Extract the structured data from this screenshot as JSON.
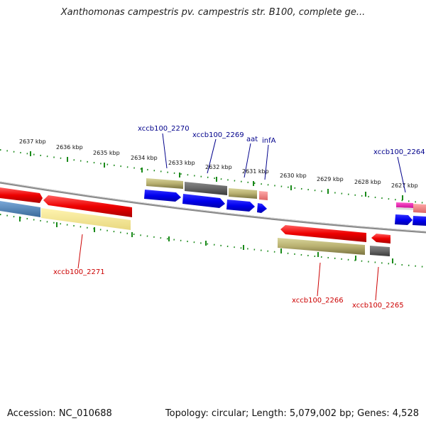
{
  "title": "Xanthomonas campestris pv. campestris str. B100, complete ge...",
  "footer": {
    "accession": "Accession: NC_010688",
    "summary": "Topology: circular; Length: 5,079,002 bp; Genes: 4,528"
  },
  "colors": {
    "forward_label": "#00008b",
    "reverse_label": "#cc0000",
    "tick": "#1a8a1a",
    "backbone": "#888888"
  },
  "scale_labels": [
    "2637 kbp",
    "2636 kbp",
    "2635 kbp",
    "2634 kbp",
    "2633 kbp",
    "2632 kbp",
    "2631 kbp",
    "2630 kbp",
    "2629 kbp",
    "2628 kbp",
    "2627 kbp"
  ],
  "gene_labels": {
    "forward": [
      "xccb100_2270",
      "xccb100_2269",
      "aat",
      "infA",
      "xccb100_2264"
    ],
    "reverse": [
      "xccb100_2271",
      "xccb100_2266",
      "xccb100_2265"
    ]
  }
}
